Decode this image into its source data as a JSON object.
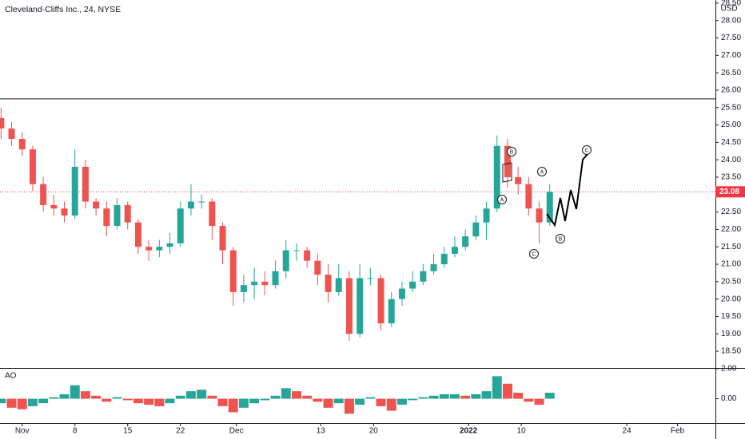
{
  "chart_data": [
    {
      "type": "candlestick",
      "title": "Cleveland-Cliffs Inc., 24, NYSE",
      "currency": "USD",
      "x": [
        -2,
        -1,
        0,
        1,
        2,
        3,
        4,
        5,
        6,
        7,
        8,
        9,
        10,
        11,
        12,
        13,
        14,
        15,
        16,
        17,
        18,
        19,
        20,
        21,
        22,
        23,
        24,
        25,
        26,
        27,
        28,
        29,
        30,
        31,
        32,
        33,
        34,
        35,
        36,
        37,
        38,
        39,
        40,
        41,
        42,
        43,
        44,
        45,
        46,
        47,
        48,
        49,
        50
      ],
      "open": [
        25.2,
        24.9,
        24.6,
        24.3,
        23.3,
        22.7,
        22.6,
        22.4,
        23.8,
        22.8,
        22.6,
        22.1,
        22.7,
        22.2,
        21.5,
        21.4,
        21.5,
        21.6,
        22.6,
        22.8,
        22.8,
        22.1,
        21.4,
        20.2,
        20.4,
        20.5,
        20.4,
        20.8,
        21.4,
        21.4,
        21.1,
        20.7,
        20.2,
        20.6,
        19.0,
        20.6,
        20.6,
        19.3,
        20.0,
        20.3,
        20.5,
        20.8,
        21.0,
        21.3,
        21.5,
        21.8,
        22.2,
        22.6,
        24.4,
        23.5,
        23.3,
        22.6,
        22.2
      ],
      "high": [
        25.5,
        25.1,
        24.8,
        24.4,
        23.5,
        23.0,
        22.8,
        24.3,
        24.0,
        22.9,
        22.8,
        22.9,
        22.8,
        22.3,
        21.7,
        21.7,
        21.9,
        22.8,
        23.3,
        23.0,
        22.9,
        22.2,
        21.5,
        20.7,
        20.9,
        20.8,
        21.1,
        21.7,
        21.6,
        21.5,
        21.3,
        21.0,
        21.0,
        20.8,
        21.0,
        20.9,
        20.7,
        20.2,
        20.5,
        20.8,
        21.0,
        21.3,
        21.5,
        21.8,
        22.0,
        22.4,
        22.8,
        24.7,
        24.6,
        23.8,
        23.5,
        22.8,
        23.3
      ],
      "low": [
        24.6,
        24.4,
        24.1,
        23.1,
        22.5,
        22.4,
        22.2,
        22.3,
        22.6,
        22.4,
        21.8,
        22.0,
        22.0,
        21.3,
        21.1,
        21.2,
        21.3,
        21.5,
        22.4,
        22.6,
        21.7,
        21.0,
        19.8,
        19.9,
        20.0,
        20.1,
        20.3,
        20.6,
        21.1,
        20.9,
        20.4,
        19.9,
        20.1,
        18.8,
        18.9,
        20.4,
        19.1,
        19.2,
        19.8,
        20.2,
        20.4,
        20.7,
        20.9,
        21.2,
        21.4,
        21.7,
        21.7,
        22.5,
        23.2,
        23.0,
        22.4,
        21.6,
        22.1
      ],
      "close": [
        24.9,
        24.6,
        24.3,
        23.3,
        22.7,
        22.6,
        22.4,
        23.8,
        22.8,
        22.6,
        22.1,
        22.7,
        22.2,
        21.5,
        21.4,
        21.5,
        21.6,
        22.6,
        22.8,
        22.8,
        22.1,
        21.4,
        20.2,
        20.4,
        20.5,
        20.4,
        20.8,
        21.4,
        21.4,
        21.1,
        20.7,
        20.2,
        20.6,
        19.0,
        20.6,
        20.6,
        19.3,
        20.0,
        20.3,
        20.5,
        20.8,
        21.0,
        21.3,
        21.5,
        21.8,
        22.2,
        22.6,
        24.4,
        23.5,
        23.3,
        22.6,
        22.2,
        23.08
      ],
      "up_color": "#26a69a",
      "down_color": "#ef5350",
      "last_price": 23.08,
      "last_price_color": "#f23645",
      "horizontal_line": 25.75,
      "annotations": [
        "A",
        "B",
        "C",
        "A",
        "B",
        "C"
      ],
      "xlim": [
        -2.1,
        65.7
      ],
      "ylim": [
        18.02,
        28.59
      ],
      "yticks": [
        {
          "value": 18.5,
          "label": "18.50"
        },
        {
          "value": 19,
          "label": "19.00"
        },
        {
          "value": 19.5,
          "label": "19.50"
        },
        {
          "value": 20,
          "label": "20.00"
        },
        {
          "value": 20.5,
          "label": "20.50"
        },
        {
          "value": 21,
          "label": "21.00"
        },
        {
          "value": 21.5,
          "label": "21.50"
        },
        {
          "value": 22,
          "label": "22.00"
        },
        {
          "value": 22.5,
          "label": "22.50"
        },
        {
          "value": 23,
          "label": "23.00"
        },
        {
          "value": 23.5,
          "label": "23.50"
        },
        {
          "value": 24,
          "label": "24.00"
        },
        {
          "value": 24.5,
          "label": "24.50"
        },
        {
          "value": 25,
          "label": "25.00"
        },
        {
          "value": 25.5,
          "label": "25.50"
        },
        {
          "value": 26,
          "label": "26.00"
        },
        {
          "value": 26.5,
          "label": "26.50"
        },
        {
          "value": 27,
          "label": "27.00"
        },
        {
          "value": 27.5,
          "label": "27.50"
        },
        {
          "value": 28,
          "label": "28.00"
        },
        {
          "value": 28.5,
          "label": "28.50"
        }
      ]
    },
    {
      "type": "bar",
      "title": "AO",
      "x": [
        -2,
        -1,
        0,
        1,
        2,
        3,
        4,
        5,
        6,
        7,
        8,
        9,
        10,
        11,
        12,
        13,
        14,
        15,
        16,
        17,
        18,
        19,
        20,
        21,
        22,
        23,
        24,
        25,
        26,
        27,
        28,
        29,
        30,
        31,
        32,
        33,
        34,
        35,
        36,
        37,
        38,
        39,
        40,
        41,
        42,
        43,
        44,
        45,
        46,
        47,
        48,
        49,
        50
      ],
      "values": [
        -0.3,
        -0.6,
        -0.7,
        -0.5,
        -0.3,
        0.1,
        0.3,
        0.9,
        0.5,
        0.2,
        -0.2,
        0.1,
        -0.1,
        -0.3,
        -0.4,
        -0.5,
        -0.3,
        0.2,
        0.5,
        0.6,
        0.2,
        -0.5,
        -0.9,
        -0.6,
        -0.3,
        -0.1,
        0.2,
        0.7,
        0.5,
        0.2,
        -0.2,
        -0.6,
        -0.3,
        -1.0,
        -0.4,
        0.1,
        -0.5,
        -0.8,
        -0.4,
        -0.1,
        0.1,
        0.2,
        0.3,
        0.3,
        0.2,
        0.3,
        0.5,
        1.5,
        1.0,
        0.4,
        -0.2,
        -0.4,
        0.4
      ],
      "up_color": "#26a69a",
      "down_color": "#ef5350",
      "xlim": [
        -2.1,
        65.7
      ],
      "ylim": [
        -1.62,
        2.05
      ],
      "yticks": [
        {
          "value": 0,
          "label": "0.00"
        },
        {
          "value": 2,
          "label": "2.00"
        }
      ],
      "xticks": [
        {
          "value": 0,
          "label": "Nov"
        },
        {
          "value": 5,
          "label": "8"
        },
        {
          "value": 10,
          "label": "15"
        },
        {
          "value": 15,
          "label": "22"
        },
        {
          "value": 20.3,
          "label": "Dec"
        },
        {
          "value": 28.3,
          "label": "13"
        },
        {
          "value": 33.3,
          "label": "20"
        },
        {
          "value": 42.3,
          "label": "2022"
        },
        {
          "value": 47.3,
          "label": "10"
        },
        {
          "value": 57.3,
          "label": "24"
        },
        {
          "value": 62.1,
          "label": "Feb"
        }
      ]
    }
  ]
}
